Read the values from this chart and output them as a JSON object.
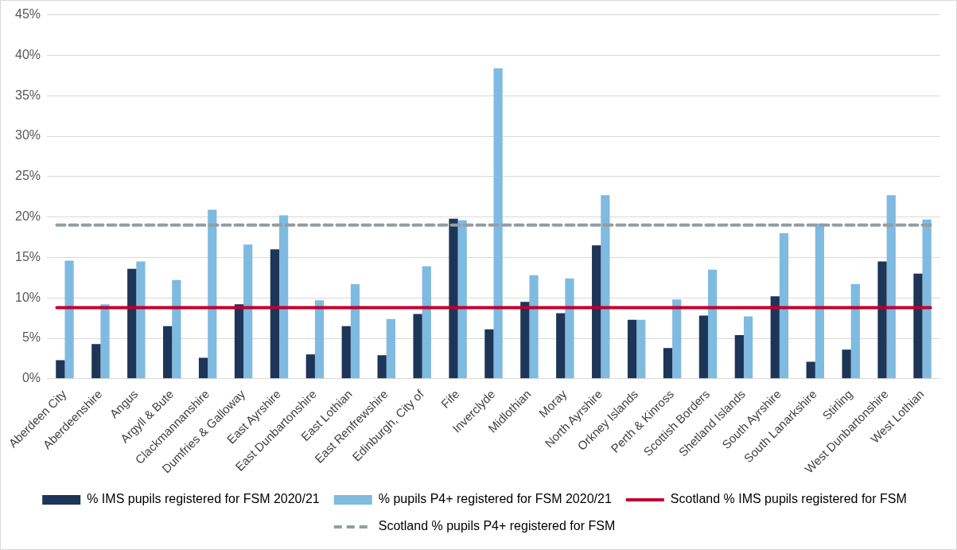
{
  "chart_data": {
    "type": "bar",
    "categories": [
      "Aberdeen City",
      "Aberdeenshire",
      "Angus",
      "Argyll & Bute",
      "Clackmannanshire",
      "Dumfries & Galloway",
      "East Ayrshire",
      "East Dunbartonshire",
      "East Lothian",
      "East Renfrewshire",
      "Edinburgh, City of",
      "Fife",
      "Inverclyde",
      "Midlothian",
      "Moray",
      "North Ayrshire",
      "Orkney Islands",
      "Perth & Kinross",
      "Scottish Borders",
      "Shetland Islands",
      "South Ayrshire",
      "South Lanarkshire",
      "Stirling",
      "West Dunbartonshire",
      "West Lothian"
    ],
    "series": [
      {
        "name": "% IMS pupils registered for FSM 2020/21",
        "color": "#1d3557",
        "values": [
          2.3,
          4.3,
          13.6,
          6.5,
          2.6,
          9.2,
          16.0,
          3.0,
          6.5,
          2.9,
          8.0,
          19.8,
          6.1,
          9.5,
          8.1,
          16.5,
          7.3,
          3.8,
          7.8,
          5.4,
          10.2,
          2.1,
          3.6,
          14.5,
          13.0
        ]
      },
      {
        "name": "% pupils P4+ registered for FSM 2020/21",
        "color": "#7fbae0",
        "values": [
          14.6,
          9.2,
          14.5,
          12.2,
          20.9,
          16.6,
          20.2,
          9.7,
          11.7,
          7.4,
          13.9,
          19.6,
          38.4,
          12.8,
          12.4,
          22.7,
          7.3,
          9.8,
          13.5,
          7.7,
          18.0,
          19.2,
          11.7,
          22.7,
          19.7
        ]
      }
    ],
    "ref_lines": [
      {
        "axis": "y",
        "value": 8.8,
        "label": "Scotland % IMS pupils registered for FSM",
        "color": "#c0002e",
        "line_style": "solid"
      },
      {
        "axis": "y",
        "value": 19.0,
        "label": "Scotland % pupils P4+ registered for FSM",
        "color": "#939ea3",
        "line_style": "dashed"
      }
    ],
    "ylim": [
      0,
      45
    ],
    "yticks": [
      {
        "value": 0,
        "label": "0%"
      },
      {
        "value": 5,
        "label": "5%"
      },
      {
        "value": 10,
        "label": "10%"
      },
      {
        "value": 15,
        "label": "15%"
      },
      {
        "value": 20,
        "label": "20%"
      },
      {
        "value": 25,
        "label": "25%"
      },
      {
        "value": 30,
        "label": "30%"
      },
      {
        "value": 35,
        "label": "35%"
      },
      {
        "value": 40,
        "label": "40%"
      },
      {
        "value": 45,
        "label": "45%"
      }
    ],
    "grid": "y",
    "legend": "bottom"
  }
}
